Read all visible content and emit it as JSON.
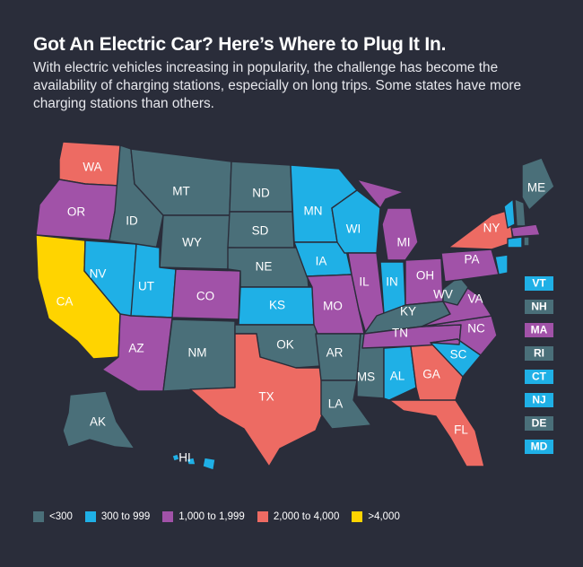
{
  "title": "Got An Electric Car? Here’s Where to Plug It In.",
  "subtitle": "With electric vehicles increasing in popularity, the challenge has become the availability of charging stations, especially on long trips. Some states have more charging stations than others.",
  "colors": {
    "background": "#2a2d3a",
    "<300": "#4a6f79",
    "300 to 999": "#1fb0e6",
    "1,000 to 1,999": "#a152a8",
    "2,000 to 4,000": "#ed6b63",
    ">4,000": "#ffd400"
  },
  "legend": [
    {
      "key": "<300",
      "label": "<300"
    },
    {
      "key": "300 to 999",
      "label": "300 to 999"
    },
    {
      "key": "1,000 to 1,999",
      "label": "1,000 to 1,999"
    },
    {
      "key": "2,000 to 4,000",
      "label": "2,000 to 4,000"
    },
    {
      "key": ">4,000",
      "label": ">4,000"
    }
  ],
  "states": {
    "WA": "2,000 to 4,000",
    "OR": "1,000 to 1,999",
    "CA": ">4,000",
    "NV": "300 to 999",
    "ID": "<300",
    "MT": "<300",
    "WY": "<300",
    "UT": "300 to 999",
    "AZ": "1,000 to 1,999",
    "CO": "1,000 to 1,999",
    "NM": "<300",
    "ND": "<300",
    "SD": "<300",
    "NE": "<300",
    "KS": "300 to 999",
    "OK": "<300",
    "TX": "2,000 to 4,000",
    "MN": "300 to 999",
    "IA": "300 to 999",
    "MO": "1,000 to 1,999",
    "AR": "<300",
    "LA": "<300",
    "WI": "300 to 999",
    "IL": "1,000 to 1,999",
    "MS": "<300",
    "MI": "1,000 to 1,999",
    "IN": "300 to 999",
    "OH": "1,000 to 1,999",
    "KY": "<300",
    "TN": "1,000 to 1,999",
    "AL": "300 to 999",
    "GA": "2,000 to 4,000",
    "FL": "2,000 to 4,000",
    "SC": "300 to 999",
    "NC": "1,000 to 1,999",
    "VA": "1,000 to 1,999",
    "WV": "<300",
    "PA": "1,000 to 1,999",
    "NY": "2,000 to 4,000",
    "ME": "<300",
    "AK": "<300",
    "HI": "300 to 999",
    "VT": "300 to 999",
    "NH": "<300",
    "MA": "1,000 to 1,999",
    "RI": "<300",
    "CT": "300 to 999",
    "NJ": "300 to 999",
    "DE": "<300",
    "MD": "300 to 999"
  },
  "small_states": [
    "VT",
    "NH",
    "MA",
    "RI",
    "CT",
    "NJ",
    "DE",
    "MD"
  ]
}
